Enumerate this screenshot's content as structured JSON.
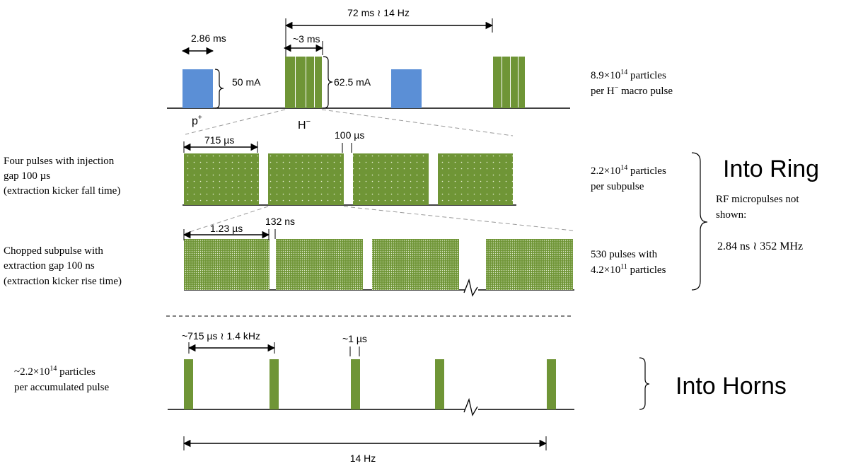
{
  "colors": {
    "proton": "#5b8fd6",
    "hminus": "#6f9536",
    "hminus_dark": "#5a7d2a",
    "line": "#000000",
    "dashed": "#999999"
  },
  "macro": {
    "period_label": "72 ms  ≀  14 Hz",
    "width_label": "2.86 ms",
    "width_small_label": "~3 ms",
    "p_current": "50 mA",
    "h_current": "62.5 mA",
    "p_name": "p",
    "p_sup": "+",
    "h_name": "H",
    "h_sup": "−",
    "right_line1_pre": "8.9×10",
    "right_line1_sup": "14",
    "right_line1_post": "  particles",
    "right_line2": "per H",
    "right_line2_sup": "−",
    "right_line2_post": " macro pulse"
  },
  "subpulse": {
    "width_label": "715 µs",
    "gap_label": "100 µs",
    "left_lines": [
      "Four pulses with injection",
      "gap 100 µs",
      "(extraction kicker fall time)"
    ],
    "right_line1_pre": "2.2×10",
    "right_line1_sup": "14",
    "right_line1_post": "  particles",
    "right_line2": "per subpulse"
  },
  "chopped": {
    "width_label": "1.23 µs",
    "gap_label": "132 ns",
    "left_lines": [
      "Chopped subpulse with",
      "extraction gap 100 ns",
      "(extraction kicker rise time)"
    ],
    "right_line1": "530 pulses with",
    "right_line2_pre": "4.2×10",
    "right_line2_sup": "11",
    "right_line2_post": " particles"
  },
  "ring": {
    "title": "Into Ring",
    "rf_lines": [
      "RF micropulses not",
      "shown:"
    ],
    "rf_value": "2.84 ns ≀  352 MHz"
  },
  "horns": {
    "title": "Into Horns",
    "period_label": "~715 µs ≀ 1.4 kHz",
    "width_label": "~1 µs",
    "left_line1_pre": "~2.2×10",
    "left_line1_sup": "14",
    "left_line1_post": "  particles",
    "left_line2": "per accumulated pulse",
    "bottom_label": "14 Hz"
  }
}
